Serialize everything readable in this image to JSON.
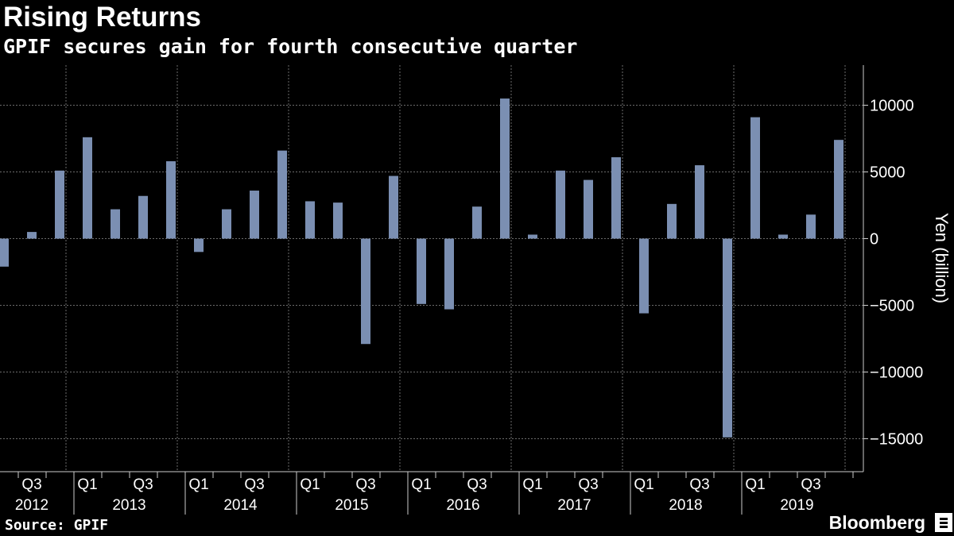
{
  "header": {
    "title": "Rising Returns",
    "subtitle": "GPIF secures gain for fourth consecutive quarter"
  },
  "footer": {
    "source": "Source: GPIF",
    "brand": "Bloomberg"
  },
  "colors": {
    "bar": "#7b8fb2",
    "background": "#000000",
    "grid": "#6b6b6b",
    "text": "#ffffff"
  },
  "chart_data": {
    "type": "bar",
    "ylabel": "Yen (billion)",
    "ylim": [
      -17000,
      12500
    ],
    "yticks": [
      10000,
      5000,
      0,
      -5000,
      -10000,
      -15000
    ],
    "ytick_labels": [
      "10000",
      "5000",
      "0",
      "−5000",
      "−10000",
      "−15000"
    ],
    "grid": true,
    "categories": [
      "2012 Q2",
      "2012 Q3",
      "2012 Q4",
      "2013 Q1",
      "2013 Q2",
      "2013 Q3",
      "2013 Q4",
      "2014 Q1",
      "2014 Q2",
      "2014 Q3",
      "2014 Q4",
      "2015 Q1",
      "2015 Q2",
      "2015 Q3",
      "2015 Q4",
      "2016 Q1",
      "2016 Q2",
      "2016 Q3",
      "2016 Q4",
      "2017 Q1",
      "2017 Q2",
      "2017 Q3",
      "2017 Q4",
      "2018 Q1",
      "2018 Q2",
      "2018 Q3",
      "2018 Q4",
      "2019 Q1",
      "2019 Q2",
      "2019 Q3",
      "2019 Q4"
    ],
    "values": [
      -2100,
      500,
      5100,
      7600,
      2200,
      3200,
      5800,
      -1000,
      2200,
      3600,
      6600,
      2800,
      2700,
      -7900,
      4700,
      -4900,
      -5300,
      2400,
      10500,
      300,
      5100,
      4400,
      6100,
      -5600,
      2600,
      5500,
      -14900,
      9100,
      300,
      1800,
      7400
    ],
    "x_quarter_labels": [
      {
        "index": 1,
        "label": "Q3"
      },
      {
        "index": 3,
        "label": "Q1"
      },
      {
        "index": 5,
        "label": "Q3"
      },
      {
        "index": 7,
        "label": "Q1"
      },
      {
        "index": 9,
        "label": "Q3"
      },
      {
        "index": 11,
        "label": "Q1"
      },
      {
        "index": 13,
        "label": "Q3"
      },
      {
        "index": 15,
        "label": "Q1"
      },
      {
        "index": 17,
        "label": "Q3"
      },
      {
        "index": 19,
        "label": "Q1"
      },
      {
        "index": 21,
        "label": "Q3"
      },
      {
        "index": 23,
        "label": "Q1"
      },
      {
        "index": 25,
        "label": "Q3"
      },
      {
        "index": 27,
        "label": "Q1"
      },
      {
        "index": 29,
        "label": "Q3"
      }
    ],
    "x_year_labels": [
      {
        "start": 0,
        "end": 2,
        "label": "2012"
      },
      {
        "start": 3,
        "end": 6,
        "label": "2013"
      },
      {
        "start": 7,
        "end": 10,
        "label": "2014"
      },
      {
        "start": 11,
        "end": 14,
        "label": "2015"
      },
      {
        "start": 15,
        "end": 18,
        "label": "2016"
      },
      {
        "start": 19,
        "end": 22,
        "label": "2017"
      },
      {
        "start": 23,
        "end": 26,
        "label": "2018"
      },
      {
        "start": 27,
        "end": 30,
        "label": "2019"
      }
    ]
  }
}
